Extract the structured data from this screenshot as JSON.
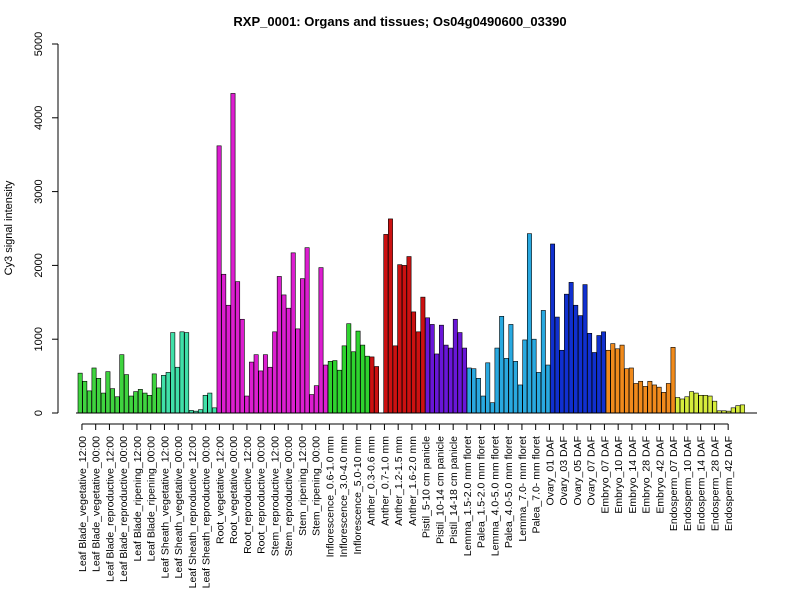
{
  "chart_data": {
    "type": "bar",
    "title": "RXP_0001: Organs and tissues; Os04g0490600_03390",
    "xlabel": "",
    "ylabel": "Cy3 signal intensity",
    "ylim": [
      0,
      5000
    ],
    "yticks": [
      0,
      1000,
      2000,
      3000,
      4000,
      5000
    ],
    "grid": false,
    "legend": "none",
    "groups": [
      {
        "color": "#3fd43f",
        "values": [
          540,
          430,
          300
        ]
      },
      {
        "color": "#3fd43f",
        "values": [
          610,
          470,
          270
        ]
      },
      {
        "color": "#3fd43f",
        "values": [
          560,
          330,
          220
        ]
      },
      {
        "color": "#3fd43f",
        "values": [
          790,
          520,
          230
        ]
      },
      {
        "color": "#3fd43f",
        "values": [
          290,
          320,
          270
        ]
      },
      {
        "color": "#3fd43f",
        "values": [
          240,
          530,
          340
        ]
      },
      {
        "color": "#40e0a8",
        "values": [
          510,
          550,
          1090
        ]
      },
      {
        "color": "#40e0a8",
        "values": [
          620,
          1100,
          1090
        ]
      },
      {
        "color": "#40e0a8",
        "values": [
          35,
          25,
          45
        ]
      },
      {
        "color": "#40e0a8",
        "values": [
          240,
          270,
          70
        ]
      },
      {
        "color": "#dc1ed0",
        "values": [
          3620,
          1880,
          1460
        ]
      },
      {
        "color": "#dc1ed0",
        "values": [
          4330,
          1780,
          1270
        ]
      },
      {
        "color": "#dc1ed0",
        "values": [
          230,
          690,
          790
        ]
      },
      {
        "color": "#dc1ed0",
        "values": [
          570,
          790,
          620
        ]
      },
      {
        "color": "#dc1ed0",
        "values": [
          1100,
          1850,
          1600
        ]
      },
      {
        "color": "#dc1ed0",
        "values": [
          1420,
          2170,
          1140
        ]
      },
      {
        "color": "#dc1ed0",
        "values": [
          1820,
          2240,
          250
        ]
      },
      {
        "color": "#dc1ed0",
        "values": [
          370,
          1970,
          650
        ]
      },
      {
        "color": "#2ed42e",
        "values": [
          700,
          710,
          580
        ]
      },
      {
        "color": "#2ed42e",
        "values": [
          910,
          1210,
          830
        ]
      },
      {
        "color": "#2ed42e",
        "values": [
          1110,
          920,
          770
        ]
      },
      {
        "color": "#cc1111",
        "values": [
          760,
          630,
          0
        ]
      },
      {
        "color": "#cc1111",
        "values": [
          2420,
          2630,
          910
        ]
      },
      {
        "color": "#cc1111",
        "values": [
          2010,
          2000,
          2120
        ]
      },
      {
        "color": "#cc1111",
        "values": [
          1370,
          1100,
          1570
        ]
      },
      {
        "color": "#6a16d8",
        "values": [
          1290,
          1200,
          800
        ]
      },
      {
        "color": "#6a16d8",
        "values": [
          1190,
          920,
          880
        ]
      },
      {
        "color": "#6a16d8",
        "values": [
          1270,
          1090,
          880
        ]
      },
      {
        "color": "#29a9e0",
        "values": [
          610,
          600,
          470
        ]
      },
      {
        "color": "#29a9e0",
        "values": [
          230,
          680,
          140
        ]
      },
      {
        "color": "#29a9e0",
        "values": [
          880,
          1310,
          740
        ]
      },
      {
        "color": "#29a9e0",
        "values": [
          1200,
          700,
          380
        ]
      },
      {
        "color": "#29a9e0",
        "values": [
          990,
          2430,
          1000
        ]
      },
      {
        "color": "#29a9e0",
        "values": [
          550,
          1390,
          650
        ]
      },
      {
        "color": "#1030d0",
        "values": [
          2290,
          1300,
          850
        ]
      },
      {
        "color": "#1030d0",
        "values": [
          1610,
          1770,
          1460
        ]
      },
      {
        "color": "#1030d0",
        "values": [
          1320,
          1740,
          1080
        ]
      },
      {
        "color": "#1030d0",
        "values": [
          820,
          1050,
          1100
        ]
      },
      {
        "color": "#f08a1c",
        "values": [
          850,
          940,
          870
        ]
      },
      {
        "color": "#f08a1c",
        "values": [
          920,
          600,
          610
        ]
      },
      {
        "color": "#f08a1c",
        "values": [
          400,
          430,
          360
        ]
      },
      {
        "color": "#f08a1c",
        "values": [
          430,
          380,
          350
        ]
      },
      {
        "color": "#f08a1c",
        "values": [
          280,
          400,
          890
        ]
      },
      {
        "color": "#d6ec3c",
        "values": [
          210,
          190,
          220
        ]
      },
      {
        "color": "#d6ec3c",
        "values": [
          290,
          270,
          240
        ]
      },
      {
        "color": "#d6ec3c",
        "values": [
          240,
          230,
          160
        ]
      },
      {
        "color": "#d6ec3c",
        "values": [
          30,
          30,
          25
        ]
      },
      {
        "color": "#d6ec3c",
        "values": [
          70,
          100,
          110
        ]
      }
    ],
    "category_labels": [
      "Leaf Blade_vegetative_12:00",
      "Leaf Blade_vegetative_00:00",
      "Leaf Blade_reproductive_12:00",
      "Leaf Blade_reproductive_00:00",
      "Leaf Blade_ripening_12:00",
      "Leaf Blade_ripening_00:00",
      "Leaf Sheath_vegetative_12:00",
      "Leaf Sheath_vegetative_00:00",
      "Leaf Sheath_reproductive_12:00",
      "Leaf Sheath_reproductive_00:00",
      "Root_vegetative_12:00",
      "Root_vegetative_00:00",
      "Root_reproductive_12:00",
      "Root_reproductive_00:00",
      "Stem_reproductive_12:00",
      "Stem_reproductive_00:00",
      "Stem_ripening_12:00",
      "Stem_ripening_00:00",
      "Inflorescence_0.6-1.0 mm",
      "Inflorescence_3.0-4.0 mm",
      "Inflorescence_5.0-10 mm",
      "Anther_0.3-0.6 mm",
      "Anther_0.7-1.0 mm",
      "Anther_1.2-1.5 mm",
      "Anther_1.6-2.0 mm",
      "Pistil_5-10 cm panicle",
      "Pistil_10-14 cm panicle",
      "Pistil_14-18 cm panicle",
      "Lemma_1.5-2.0 mm floret",
      "Palea_1.5-2.0 mm floret",
      "Lemma_4.0-5.0 mm floret",
      "Palea_4.0-5.0 mm floret",
      "Lemma_7.0- mm floret",
      "Palea_7.0- mm floret",
      "Ovary_01 DAF",
      "Ovary_03 DAF",
      "Ovary_05 DAF",
      "Ovary_07 DAF",
      "Embryo_07 DAF",
      "Embryo_10 DAF",
      "Embryo_14 DAF",
      "Embryo_28 DAF",
      "Embryo_42 DAF",
      "Endosperm_07 DAF",
      "Endosperm_10 DAF",
      "Endosperm_14 DAF",
      "Endosperm_28 DAF",
      "Endosperm_42 DAF"
    ]
  }
}
